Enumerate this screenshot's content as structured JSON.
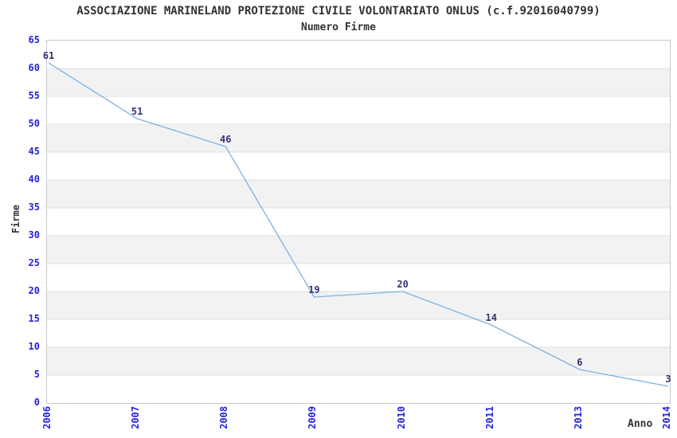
{
  "chart_data": {
    "type": "line",
    "title": "ASSOCIAZIONE MARINELAND PROTEZIONE CIVILE VOLONTARIATO ONLUS (c.f.92016040799)",
    "subtitle": "Numero Firme",
    "xlabel": "Anno",
    "ylabel": "Firme",
    "categories": [
      "2006",
      "2007",
      "2008",
      "2009",
      "2010",
      "2011",
      "2013",
      "2014"
    ],
    "values": [
      61,
      51,
      46,
      19,
      20,
      14,
      6,
      3
    ],
    "data_labels": [
      "61",
      "51",
      "46",
      "19",
      "20",
      "14",
      "6",
      "3"
    ],
    "ylim": [
      0,
      65
    ],
    "yticks": [
      0,
      5,
      10,
      15,
      20,
      25,
      30,
      35,
      40,
      45,
      50,
      55,
      60,
      65
    ],
    "grid": true,
    "legend_position": "none",
    "band_fill": true,
    "colors": {
      "line": "#7db0e4",
      "band_gray": "#f2f2f2",
      "band_white": "#ffffff",
      "gridline": "#e0e0e0",
      "plot_border": "#c9c9c9",
      "axis_tick_label": "#2323dd",
      "data_label": "#333377",
      "title_text": "#333333",
      "background": "#ffffff"
    }
  }
}
